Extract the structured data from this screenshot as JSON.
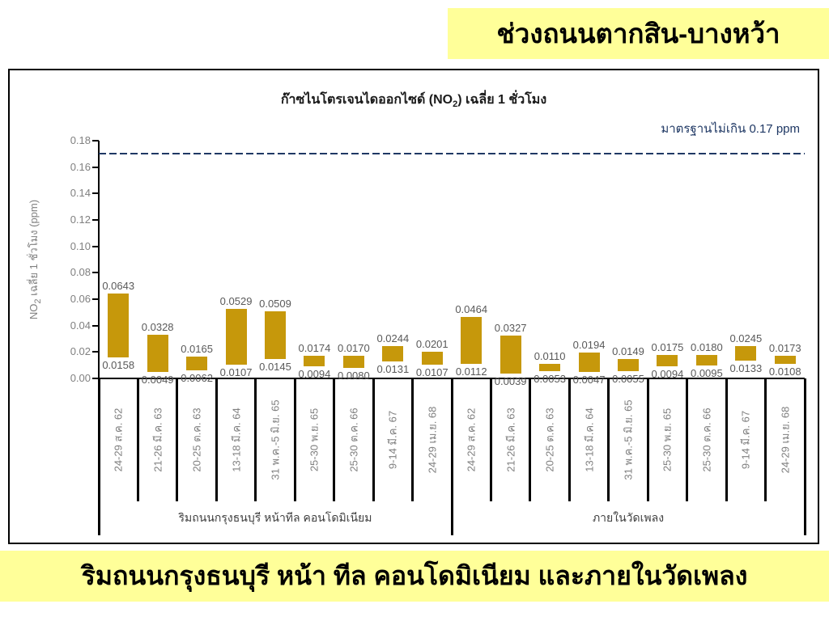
{
  "top_banner": {
    "text": "ช่วงถนนตากสิน-บางหว้า"
  },
  "bottom_banner": {
    "text": "ริมถนนกรุงธนบุรี หน้า ทีล คอนโดมิเนียม และภายในวัดเพลง"
  },
  "colors": {
    "banner_bg": "#FFFF99",
    "bar": "#C6980B",
    "standard_line": "#1F3864",
    "axis": "#000000",
    "tick_label": "#808080",
    "value_label": "#595959",
    "date_label": "#7F7F7F",
    "group_label": "#404040"
  },
  "chart_data": {
    "type": "bar",
    "subtype": "floating-range-bar",
    "title": {
      "pre": "ก๊าซไนโตรเจนไดออกไซด์ (NO",
      "sub": "2",
      "post": ") เฉลี่ย 1 ชั่วโมง"
    },
    "y_axis": {
      "label": {
        "pre": "NO",
        "sub": "2",
        "post": " เฉลี่ย 1 ชั่วโมง (ppm)"
      },
      "min": 0,
      "max": 0.18,
      "step": 0.02
    },
    "standard_line": {
      "value": 0.17,
      "label": "มาตรฐานไม่เกิน 0.17 ppm"
    },
    "unit": "ppm",
    "grid": false,
    "legend": false,
    "groups": [
      {
        "label": "ริมถนนกรุงธนบุรี หน้าทีล คอนโดมิเนียม",
        "bars": [
          {
            "category": "24-29 ส.ค. 62",
            "min": "0.0158",
            "max": "0.0643"
          },
          {
            "category": "21-26 มี.ค. 63",
            "min": "0.0049",
            "max": "0.0328"
          },
          {
            "category": "20-25 ต.ค. 63",
            "min": "0.0062",
            "max": "0.0165"
          },
          {
            "category": "13-18 มี.ค. 64",
            "min": "0.0107",
            "max": "0.0529"
          },
          {
            "category": "31 พ.ค.-5 มิ.ย. 65",
            "min": "0.0145",
            "max": "0.0509"
          },
          {
            "category": "25-30 พ.ย. 65",
            "min": "0.0094",
            "max": "0.0174"
          },
          {
            "category": "25-30 ต.ค. 66",
            "min": "0.0080",
            "max": "0.0170"
          },
          {
            "category": "9-14 มี.ค. 67",
            "min": "0.0131",
            "max": "0.0244"
          },
          {
            "category": "24-29 เม.ย. 68",
            "min": "0.0107",
            "max": "0.0201"
          }
        ]
      },
      {
        "label": "ภายในวัดเพลง",
        "bars": [
          {
            "category": "24-29 ส.ค. 62",
            "min": "0.0112",
            "max": "0.0464"
          },
          {
            "category": "21-26 มี.ค. 63",
            "min": "0.0039",
            "max": "0.0327"
          },
          {
            "category": "20-25 ต.ค. 63",
            "min": "0.0053",
            "max": "0.0110"
          },
          {
            "category": "13-18 มี.ค. 64",
            "min": "0.0047",
            "max": "0.0194"
          },
          {
            "category": "31 พ.ค.-5 มิ.ย. 65",
            "min": "0.0055",
            "max": "0.0149"
          },
          {
            "category": "25-30 พ.ย. 65",
            "min": "0.0094",
            "max": "0.0175"
          },
          {
            "category": "25-30 ต.ค. 66",
            "min": "0.0095",
            "max": "0.0180"
          },
          {
            "category": "9-14 มี.ค. 67",
            "min": "0.0133",
            "max": "0.0245"
          },
          {
            "category": "24-29 เม.ย. 68",
            "min": "0.0108",
            "max": "0.0173"
          }
        ]
      }
    ]
  }
}
